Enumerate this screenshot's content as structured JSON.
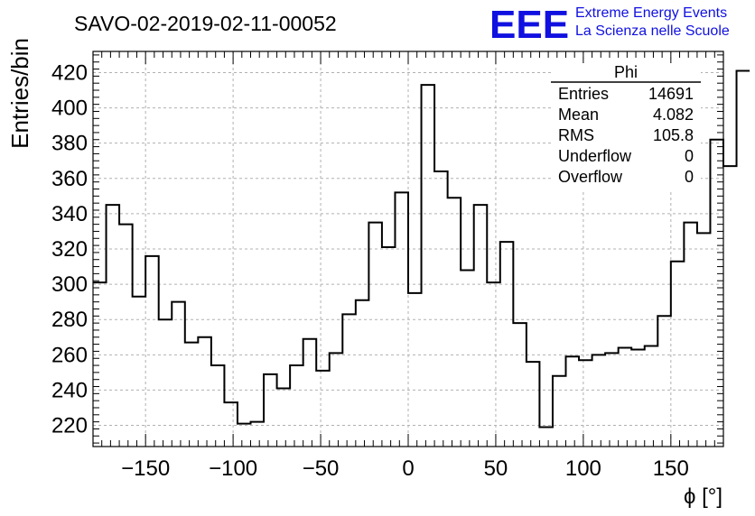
{
  "title": "SAVO-02-2019-02-11-00052",
  "logo": {
    "mark": "EEE",
    "line1": "Extreme Energy Events",
    "line2": "La Scienza nelle Scuole",
    "color": "#1010e0"
  },
  "stats_box": {
    "title": "Phi",
    "rows": [
      {
        "label": "Entries",
        "value": "14691"
      },
      {
        "label": "Mean",
        "value": "4.082"
      },
      {
        "label": "RMS",
        "value": "105.8"
      },
      {
        "label": "Underflow",
        "value": "0"
      },
      {
        "label": "Overflow",
        "value": "0"
      }
    ]
  },
  "chart_data": {
    "type": "bar",
    "style": "step-histogram",
    "title": "SAVO-02-2019-02-11-00052",
    "xlabel": "ϕ [°]",
    "ylabel": "Entries/bin",
    "xlim": [
      -180,
      180
    ],
    "ylim": [
      208,
      432
    ],
    "bin_width": 7.5,
    "bin_start": -180,
    "values": [
      301,
      345,
      334,
      293,
      316,
      280,
      290,
      267,
      270,
      254,
      233,
      221,
      222,
      249,
      241,
      254,
      269,
      251,
      261,
      283,
      291,
      335,
      321,
      352,
      295,
      413,
      364,
      349,
      308,
      345,
      301,
      324,
      278,
      256,
      219,
      248,
      259,
      257,
      260,
      261,
      264,
      263,
      265,
      282,
      313,
      335,
      329,
      382,
      367,
      421
    ],
    "x_ticks": [
      -150,
      -100,
      -50,
      0,
      50,
      100,
      150
    ],
    "y_ticks": [
      220,
      240,
      260,
      280,
      300,
      320,
      340,
      360,
      380,
      400,
      420
    ],
    "grid": true,
    "line_color": "#000000"
  }
}
